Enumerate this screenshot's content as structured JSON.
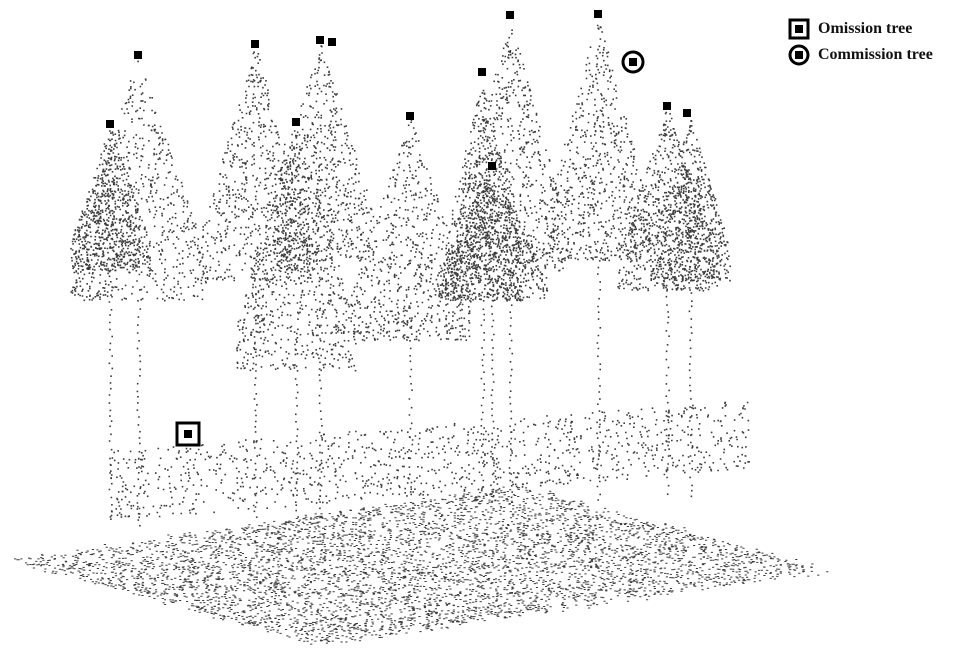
{
  "legend": {
    "items": [
      {
        "label": "Omission tree",
        "symbol": "square-marker-icon"
      },
      {
        "label": "Commission tree",
        "symbol": "circle-marker-icon"
      }
    ]
  },
  "colors": {
    "points": "#3c3c3c",
    "markers": "#000000",
    "background": "#ffffff"
  }
}
